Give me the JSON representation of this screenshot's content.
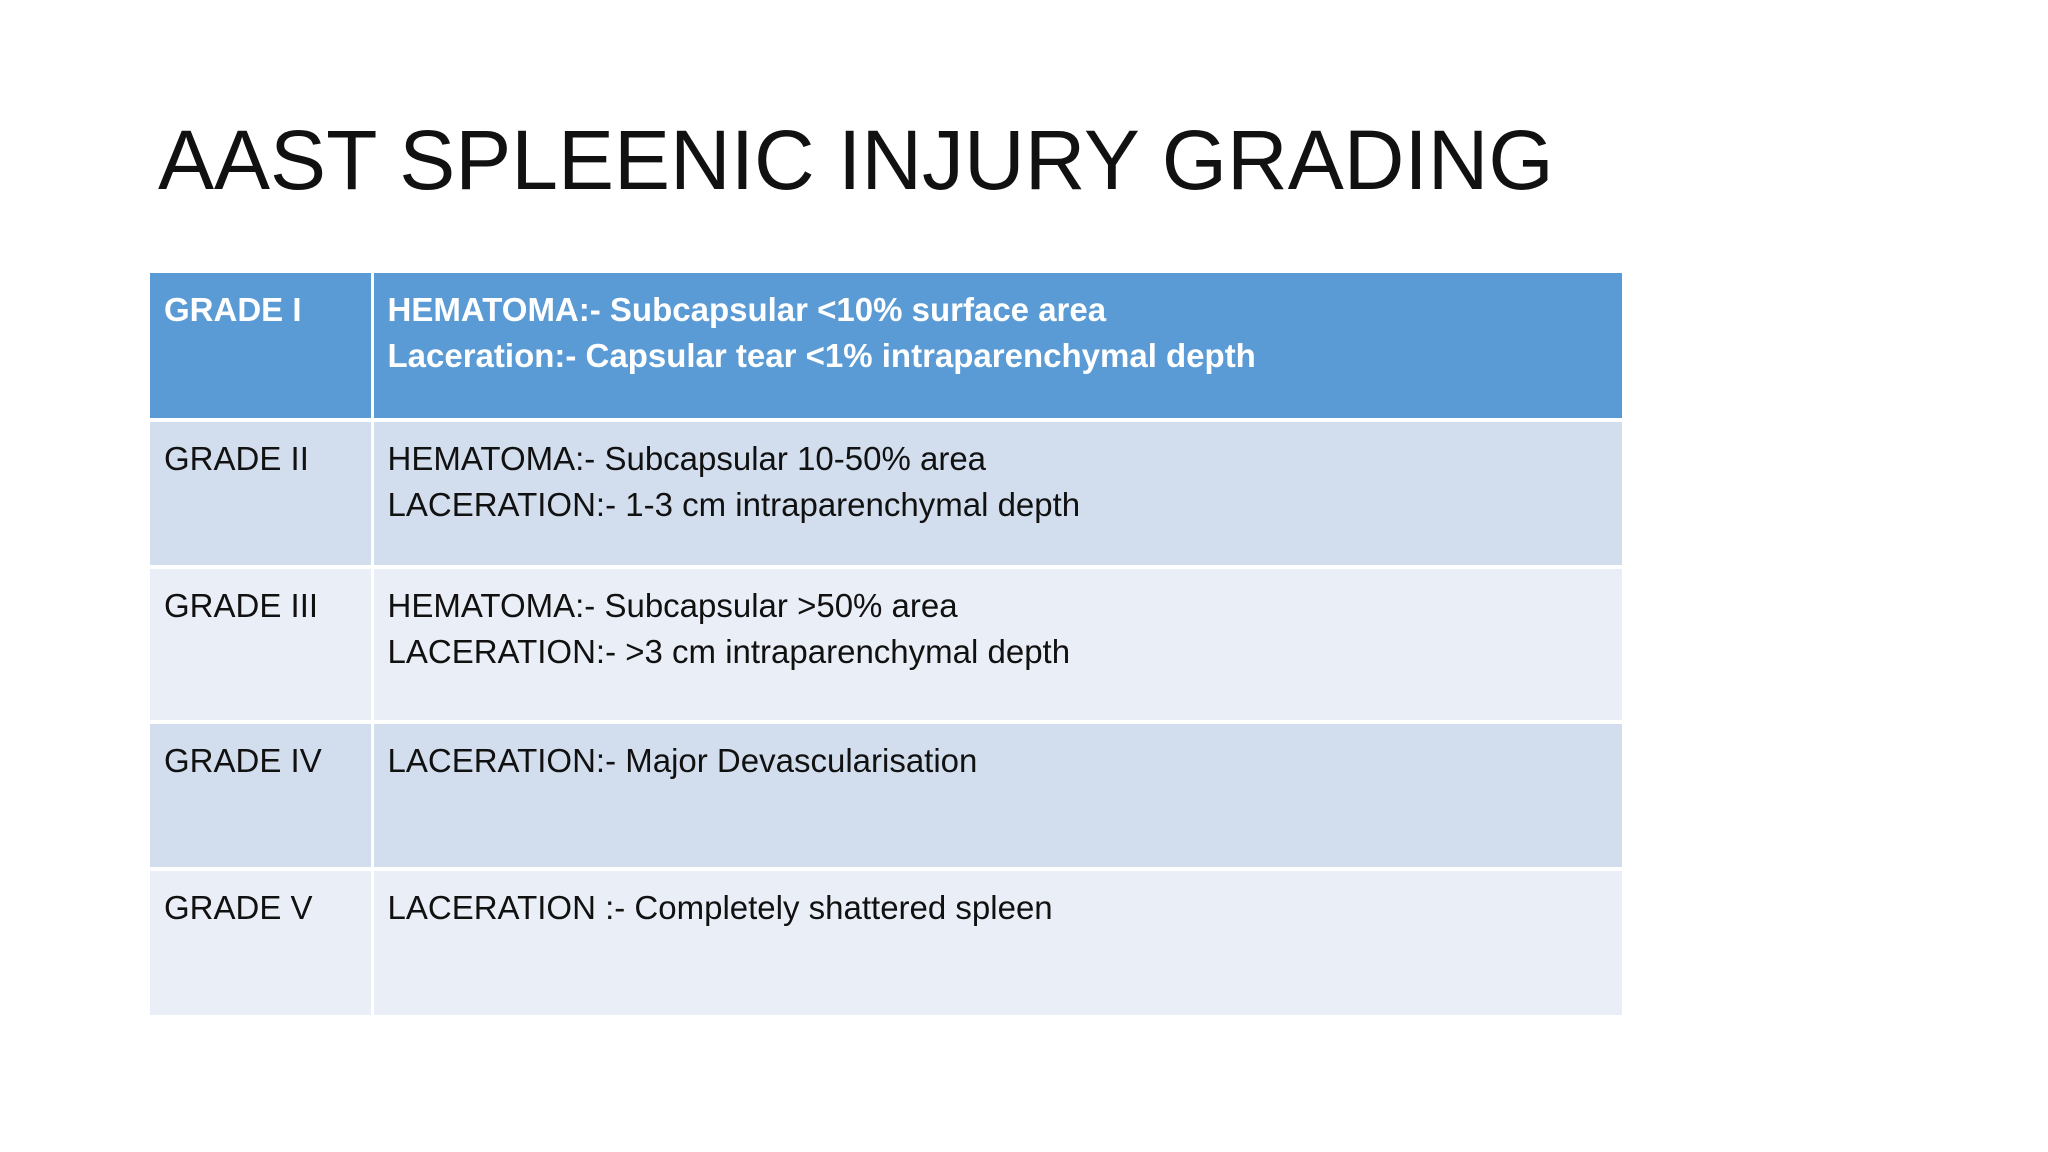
{
  "slide": {
    "title": "AAST SPLEENIC INJURY GRADING"
  },
  "colors": {
    "header_bg": "#5b9bd5",
    "row_dark_bg": "#d2deee",
    "row_light_bg": "#eaeff7",
    "header_text": "#ffffff",
    "body_text": "#111111"
  },
  "table": {
    "rows": [
      {
        "grade": "GRADE I",
        "lines": [
          "HEMATOMA:- Subcapsular <10% surface area",
          "Laceration:- Capsular tear <1% intraparenchymal depth"
        ]
      },
      {
        "grade": "GRADE II",
        "lines": [
          "HEMATOMA:- Subcapsular 10-50% area",
          "LACERATION:- 1-3 cm intraparenchymal depth"
        ]
      },
      {
        "grade": "GRADE III",
        "lines": [
          "HEMATOMA:- Subcapsular >50% area",
          "LACERATION:- >3 cm intraparenchymal depth"
        ]
      },
      {
        "grade": "GRADE IV",
        "lines": [
          "LACERATION:- Major Devascularisation"
        ]
      },
      {
        "grade": "GRADE V",
        "lines": [
          "LACERATION :- Completely shattered spleen"
        ]
      }
    ]
  }
}
